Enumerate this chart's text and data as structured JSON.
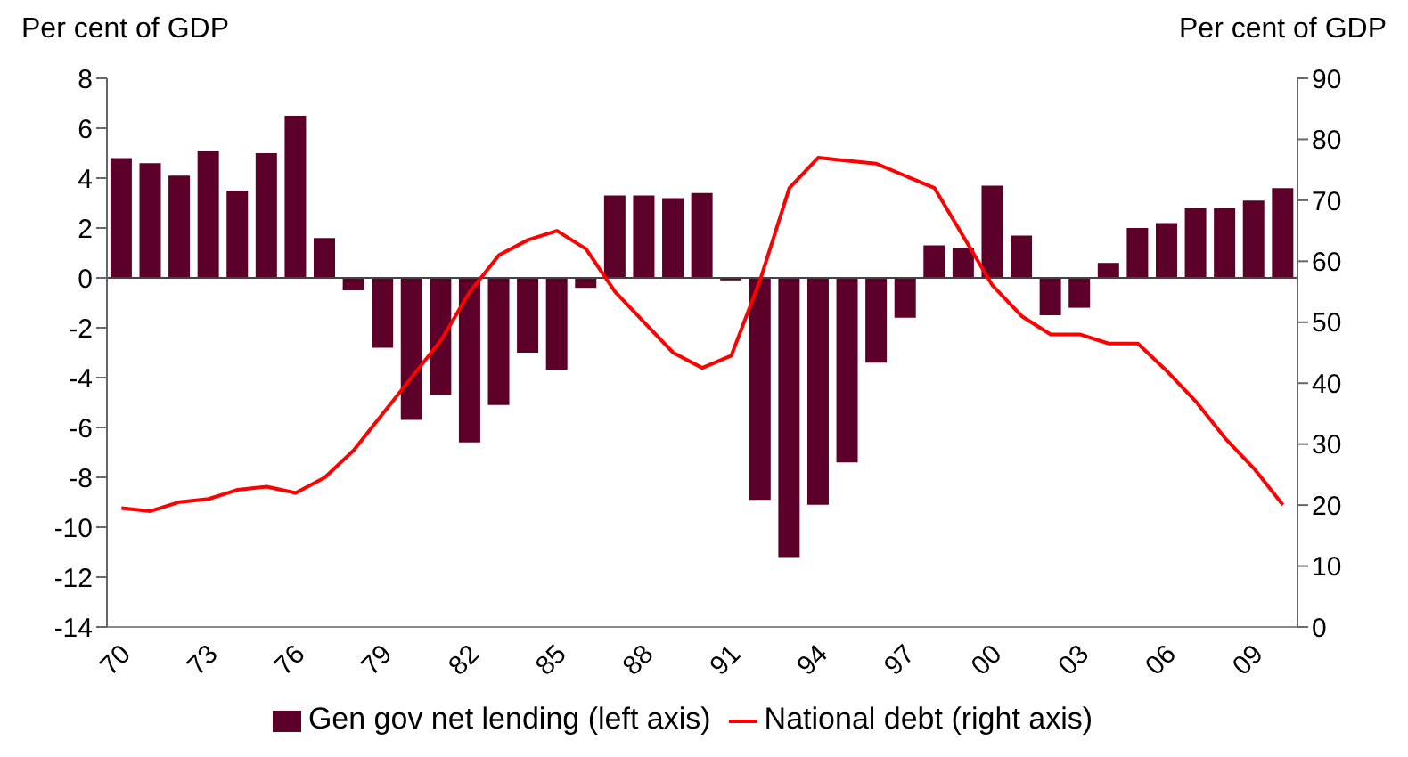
{
  "chart_data": {
    "type": "bar",
    "ylabel": "Per cent of GDP",
    "y2label": "Per cent of GDP",
    "categories": [
      "70",
      null,
      null,
      "73",
      null,
      null,
      "76",
      null,
      null,
      "79",
      null,
      null,
      "82",
      null,
      null,
      "85",
      null,
      null,
      "88",
      null,
      null,
      "91",
      null,
      null,
      "94",
      null,
      null,
      "97",
      null,
      null,
      "00",
      null,
      null,
      "03",
      null,
      null,
      "06",
      null,
      null,
      "09",
      null
    ],
    "series": [
      {
        "name": "Gen gov net lending (left axis)",
        "color": "#5c0029",
        "values": [
          4.8,
          4.6,
          4.1,
          5.1,
          3.5,
          5.0,
          6.5,
          1.6,
          -0.5,
          -2.8,
          -5.7,
          -4.7,
          -6.6,
          -5.1,
          -3.0,
          -3.7,
          -0.4,
          3.3,
          3.3,
          3.2,
          3.4,
          -0.1,
          -8.9,
          -11.2,
          -9.1,
          -7.4,
          -3.4,
          -1.6,
          1.3,
          1.2,
          3.7,
          1.7,
          -1.5,
          -1.2,
          0.6,
          2.0,
          2.2,
          2.8,
          2.8,
          3.1,
          3.6
        ]
      },
      {
        "name": "National debt (right axis)",
        "type": "line",
        "axis": "y2",
        "color": "#ff0000",
        "values": [
          19.5,
          19,
          20.5,
          21,
          22.5,
          23,
          22,
          24.5,
          29,
          35,
          41,
          47,
          55,
          61,
          63.5,
          65,
          62,
          55,
          50,
          45,
          42.5,
          44.5,
          57,
          72,
          77,
          76.5,
          76,
          74,
          72,
          64,
          56,
          51,
          48,
          48,
          46.5,
          46.5,
          42,
          37,
          31,
          26,
          20
        ]
      }
    ],
    "ylim": [
      -14,
      8
    ],
    "yticks": [
      -14,
      -12,
      -10,
      -8,
      -6,
      -4,
      -2,
      0,
      2,
      4,
      6,
      8
    ],
    "y2lim": [
      0,
      90
    ],
    "y2ticks": [
      0,
      10,
      20,
      30,
      40,
      50,
      60,
      70,
      80,
      90
    ],
    "ref_lines": [
      {
        "axis": "y",
        "value": 0,
        "color": "#444444"
      }
    ],
    "legend": "bottom",
    "grid": false,
    "marker": "none"
  }
}
